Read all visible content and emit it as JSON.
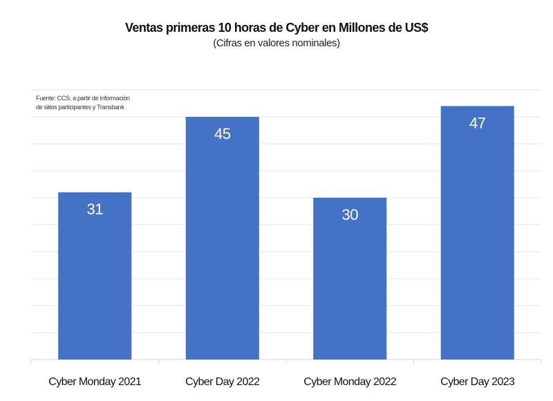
{
  "chart_data": {
    "type": "bar",
    "title": "Ventas primeras 10 horas de Cyber en Millones de US$",
    "subtitle": "(Cifras en valores nominales)",
    "source": [
      "Fuente: CCS, a partir de información",
      "de sitios participantes y Transbank"
    ],
    "categories": [
      "Cyber Monday 2021",
      "Cyber Day 2022",
      "Cyber Monday 2022",
      "Cyber Day 2023"
    ],
    "values": [
      31,
      45,
      30,
      47
    ],
    "data_labels": [
      "31",
      "45",
      "30",
      "47"
    ],
    "ylim": [
      0,
      50
    ],
    "grid": true,
    "grid_step": 5,
    "bar_color": "#4472C4",
    "grid_color": "#e3e3e3"
  }
}
